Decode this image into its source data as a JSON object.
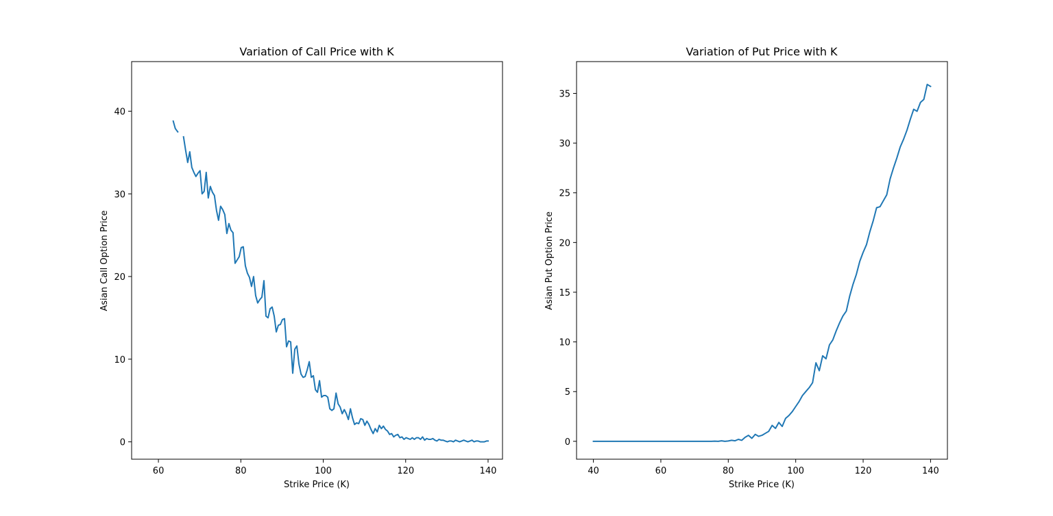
{
  "chart_data": [
    {
      "type": "line",
      "title": "Variation of Call Price with K",
      "xlabel": "Strike Price (K)",
      "ylabel": "Asian Call Option Price",
      "xlim": [
        53.5,
        143.5
      ],
      "ylim": [
        -2.1,
        46.0
      ],
      "xticks": [
        60,
        80,
        100,
        120,
        140
      ],
      "yticks": [
        0,
        10,
        20,
        30,
        40
      ],
      "grid": false,
      "legend": "none",
      "color": "#1f77b4",
      "series": [
        {
          "x": [
            63.6,
            64.1,
            64.7,
            65.7,
            66.1,
            66.6,
            67.1,
            67.6,
            68.1,
            68.6,
            69.1,
            69.6,
            70.1,
            70.6,
            71.1,
            71.6,
            72.1,
            72.6,
            73.1,
            73.6,
            74.1,
            74.6,
            75.1,
            75.6,
            76.1,
            76.6,
            77.1,
            77.6,
            78.1,
            78.6,
            79.1,
            79.6,
            80.1,
            80.6,
            81.1,
            81.6,
            82.1,
            82.6,
            83.1,
            83.6,
            84.1,
            84.6,
            85.1,
            85.6,
            86.1,
            86.6,
            87.1,
            87.6,
            88.1,
            88.6,
            89.1,
            89.6,
            90.1,
            90.6,
            91.1,
            91.6,
            92.1,
            92.6,
            93.1,
            93.6,
            94.1,
            94.6,
            95.1,
            95.6,
            96.1,
            96.6,
            97.1,
            97.6,
            98.1,
            98.6,
            99.1,
            99.6,
            100.1,
            100.6,
            101.1,
            101.6,
            102.1,
            102.6,
            103.1,
            103.6,
            104.1,
            104.6,
            105.1,
            105.6,
            106.1,
            106.6,
            107.1,
            107.6,
            108.1,
            108.6,
            109.1,
            109.6,
            110.1,
            110.6,
            111.1,
            111.6,
            112.1,
            112.6,
            113.1,
            113.6,
            114.1,
            114.6,
            115.1,
            115.6,
            116.1,
            116.6,
            117.1,
            117.6,
            118.1,
            118.6,
            119.1,
            119.6,
            120.1,
            120.6,
            121.1,
            121.6,
            122.1,
            122.6,
            123.1,
            123.6,
            124.1,
            124.6,
            125.1,
            125.6,
            126.1,
            126.6,
            127.1,
            127.6,
            128.1,
            128.6,
            129.1,
            129.6,
            130.1,
            130.6,
            131.1,
            131.6,
            132.1,
            132.6,
            133.1,
            133.6,
            134.1,
            134.6,
            135.1,
            135.6,
            136.1,
            136.6,
            137.1,
            137.6,
            138.1,
            138.6,
            139.1,
            139.6,
            140.0
          ],
          "y": [
            38.8,
            37.9,
            37.5,
            null,
            36.9,
            35.3,
            33.8,
            35.1,
            33.2,
            32.6,
            32.1,
            32.5,
            32.8,
            30.0,
            30.3,
            32.6,
            29.5,
            30.9,
            30.2,
            29.8,
            28.0,
            26.8,
            28.5,
            28.1,
            27.5,
            25.2,
            26.4,
            25.6,
            25.3,
            21.6,
            22.0,
            22.4,
            23.5,
            23.6,
            21.3,
            20.4,
            19.9,
            18.8,
            20.0,
            17.7,
            16.8,
            17.2,
            17.5,
            19.5,
            15.2,
            15.0,
            16.1,
            16.3,
            15.2,
            13.3,
            14.1,
            14.2,
            14.8,
            14.9,
            11.5,
            12.2,
            12.1,
            8.3,
            11.2,
            11.6,
            9.4,
            8.2,
            7.8,
            7.9,
            8.7,
            9.7,
            7.8,
            8.0,
            6.3,
            6.0,
            7.4,
            5.4,
            5.6,
            5.6,
            5.4,
            4.0,
            3.8,
            4.0,
            5.9,
            4.6,
            4.2,
            3.4,
            3.9,
            3.4,
            2.7,
            4.0,
            2.9,
            2.1,
            2.3,
            2.2,
            2.8,
            2.7,
            2.0,
            2.5,
            2.1,
            1.5,
            1.0,
            1.6,
            1.2,
            2.0,
            1.6,
            1.9,
            1.5,
            1.3,
            0.9,
            1.0,
            0.6,
            0.8,
            0.9,
            0.5,
            0.6,
            0.3,
            0.5,
            0.4,
            0.3,
            0.5,
            0.3,
            0.5,
            0.5,
            0.3,
            0.6,
            0.2,
            0.4,
            0.3,
            0.3,
            0.4,
            0.2,
            0.1,
            0.3,
            0.2,
            0.2,
            0.1,
            0.0,
            0.1,
            0.1,
            0.0,
            0.2,
            0.1,
            0.0,
            0.1,
            0.2,
            0.1,
            0.0,
            0.1,
            0.2,
            0.0,
            0.1,
            0.1,
            0.0,
            0.0,
            0.0,
            0.1,
            0.1
          ]
        }
      ]
    },
    {
      "type": "line",
      "title": "Variation of Put Price with K",
      "xlabel": "Strike Price (K)",
      "ylabel": "Asian Put Option Price",
      "xlim": [
        35,
        145
      ],
      "ylim": [
        -1.8,
        38.2
      ],
      "xticks": [
        40,
        60,
        80,
        100,
        120,
        140
      ],
      "yticks": [
        0,
        5,
        10,
        15,
        20,
        25,
        30,
        35
      ],
      "grid": false,
      "legend": "none",
      "color": "#1f77b4",
      "series": [
        {
          "x": [
            40,
            75,
            76,
            77,
            78,
            79,
            80,
            81,
            82,
            83,
            84,
            85,
            86,
            87,
            88,
            89,
            90,
            91,
            92,
            93,
            94,
            95,
            96,
            97,
            98,
            99,
            100,
            101,
            102,
            103,
            104,
            105,
            106,
            107,
            108,
            109,
            110,
            111,
            112,
            113,
            114,
            115,
            116,
            117,
            118,
            119,
            120,
            121,
            122,
            123,
            124,
            125,
            126,
            127,
            128,
            129,
            130,
            131,
            132,
            133,
            134,
            135,
            136,
            137,
            138,
            139,
            140
          ],
          "y": [
            0.0,
            0.0,
            0.02,
            0.0,
            0.05,
            0.0,
            0.03,
            0.1,
            0.05,
            0.2,
            0.1,
            0.4,
            0.6,
            0.3,
            0.7,
            0.5,
            0.6,
            0.8,
            1.0,
            1.6,
            1.3,
            1.9,
            1.5,
            2.3,
            2.6,
            3.0,
            3.5,
            4.0,
            4.6,
            5.0,
            5.4,
            5.9,
            7.9,
            7.1,
            8.6,
            8.3,
            9.7,
            10.2,
            11.1,
            11.9,
            12.6,
            13.1,
            14.6,
            15.8,
            16.8,
            18.1,
            19.0,
            19.8,
            21.1,
            22.2,
            23.5,
            23.6,
            24.2,
            24.8,
            26.4,
            27.5,
            28.5,
            29.6,
            30.4,
            31.3,
            32.4,
            33.4,
            33.2,
            34.1,
            34.4,
            35.9,
            35.7
          ]
        }
      ]
    }
  ]
}
